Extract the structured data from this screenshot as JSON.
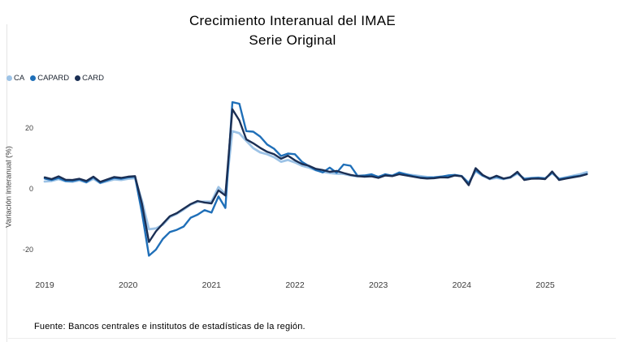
{
  "title": {
    "line1": "Crecimiento Interanual del IMAE",
    "line2": "Serie Original"
  },
  "footer": {
    "source": "Fuente: Bancos centrales e institutos de estadísticas de la región."
  },
  "chart_data": {
    "type": "line",
    "title": "Crecimiento Interanual del IMAE - Serie Original",
    "xlabel": "",
    "ylabel": "Variación interanual (%)",
    "grid": false,
    "legend_position": "top-left",
    "y_ticks": [
      20,
      0,
      -20
    ],
    "ylim": [
      -26,
      32
    ],
    "x_tick_labels": [
      "2019",
      "2020",
      "2021",
      "2022",
      "2023",
      "2024",
      "2025"
    ],
    "x": [
      "2019-01",
      "2019-02",
      "2019-03",
      "2019-04",
      "2019-05",
      "2019-06",
      "2019-07",
      "2019-08",
      "2019-09",
      "2019-10",
      "2019-11",
      "2019-12",
      "2020-01",
      "2020-02",
      "2020-03",
      "2020-04",
      "2020-05",
      "2020-06",
      "2020-07",
      "2020-08",
      "2020-09",
      "2020-10",
      "2020-11",
      "2020-12",
      "2021-01",
      "2021-02",
      "2021-03",
      "2021-04",
      "2021-05",
      "2021-06",
      "2021-07",
      "2021-08",
      "2021-09",
      "2021-10",
      "2021-11",
      "2021-12",
      "2022-01",
      "2022-02",
      "2022-03",
      "2022-04",
      "2022-05",
      "2022-06",
      "2022-07",
      "2022-08",
      "2022-09",
      "2022-10",
      "2022-11",
      "2022-12",
      "2023-01",
      "2023-02",
      "2023-03",
      "2023-04",
      "2023-05",
      "2023-06",
      "2023-07",
      "2023-08",
      "2023-09",
      "2023-10",
      "2023-11",
      "2023-12",
      "2024-01",
      "2024-02",
      "2024-03",
      "2024-04",
      "2024-05",
      "2024-06",
      "2024-07",
      "2024-08",
      "2024-09",
      "2024-10",
      "2024-11",
      "2024-12",
      "2025-01",
      "2025-02",
      "2025-03",
      "2025-04",
      "2025-05",
      "2025-06",
      "2025-07"
    ],
    "series": [
      {
        "name": "CA",
        "color": "#9DC3E6",
        "values": [
          2.4,
          2.6,
          3.2,
          2.5,
          2.3,
          2.8,
          2.1,
          3.3,
          1.9,
          2.5,
          3.1,
          2.9,
          3.3,
          3.5,
          -4.0,
          -13.3,
          -13.0,
          -11.8,
          -9.3,
          -8.2,
          -6.8,
          -5.2,
          -4.3,
          -4.2,
          -4.2,
          0.6,
          -1.8,
          19.0,
          18.3,
          15.8,
          13.4,
          12.0,
          11.4,
          10.4,
          8.9,
          9.5,
          8.7,
          7.6,
          7.0,
          6.1,
          5.6,
          5.2,
          5.0,
          4.9,
          4.4,
          4.1,
          4.3,
          4.4,
          4.0,
          4.6,
          4.4,
          5.2,
          4.7,
          4.5,
          4.2,
          3.9,
          3.8,
          4.0,
          4.1,
          4.5,
          4.2,
          2.0,
          5.8,
          4.3,
          3.2,
          3.6,
          3.2,
          3.7,
          5.0,
          3.4,
          3.6,
          3.7,
          3.5,
          5.1,
          3.3,
          3.8,
          4.3,
          4.8,
          5.5
        ]
      },
      {
        "name": "CAPARD",
        "color": "#1F6FB8",
        "values": [
          3.4,
          2.9,
          3.6,
          2.6,
          2.6,
          3.1,
          2.2,
          3.8,
          2.0,
          2.8,
          3.6,
          3.3,
          3.8,
          4.0,
          -8.0,
          -22.0,
          -20.0,
          -16.5,
          -14.2,
          -13.5,
          -12.4,
          -9.5,
          -8.5,
          -7.0,
          -7.8,
          -2.5,
          -6.3,
          28.5,
          28.0,
          19.0,
          18.8,
          17.2,
          14.6,
          13.2,
          10.8,
          11.6,
          11.4,
          8.9,
          7.5,
          6.2,
          5.4,
          7.0,
          5.3,
          8.0,
          7.6,
          4.3,
          4.4,
          4.8,
          3.9,
          4.8,
          4.3,
          5.4,
          4.8,
          4.2,
          3.8,
          3.6,
          3.7,
          4.0,
          4.4,
          4.6,
          4.2,
          1.8,
          6.2,
          4.4,
          3.5,
          4.0,
          3.3,
          3.9,
          5.3,
          3.2,
          3.5,
          3.6,
          3.4,
          5.4,
          3.2,
          3.6,
          4.0,
          4.3,
          4.9
        ]
      },
      {
        "name": "CARD",
        "color": "#1B2F54",
        "values": [
          3.8,
          3.2,
          4.1,
          3.0,
          2.9,
          3.3,
          2.6,
          4.0,
          2.3,
          3.1,
          3.9,
          3.6,
          4.0,
          4.2,
          -5.0,
          -17.5,
          -14.0,
          -11.5,
          -9.0,
          -8.0,
          -6.5,
          -5.0,
          -4.0,
          -4.5,
          -4.8,
          -0.5,
          -2.2,
          26.2,
          22.5,
          16.3,
          15.0,
          13.5,
          12.2,
          11.4,
          9.9,
          10.9,
          9.4,
          8.2,
          7.6,
          6.6,
          6.2,
          5.6,
          5.9,
          5.2,
          4.6,
          4.2,
          4.0,
          4.1,
          3.6,
          4.4,
          4.2,
          4.8,
          4.4,
          4.0,
          3.6,
          3.4,
          3.5,
          3.8,
          3.7,
          4.4,
          4.1,
          1.2,
          6.8,
          4.6,
          3.3,
          4.3,
          3.4,
          3.8,
          5.6,
          2.9,
          3.3,
          3.4,
          3.2,
          5.7,
          2.9,
          3.4,
          3.8,
          4.2,
          4.8
        ]
      }
    ]
  }
}
